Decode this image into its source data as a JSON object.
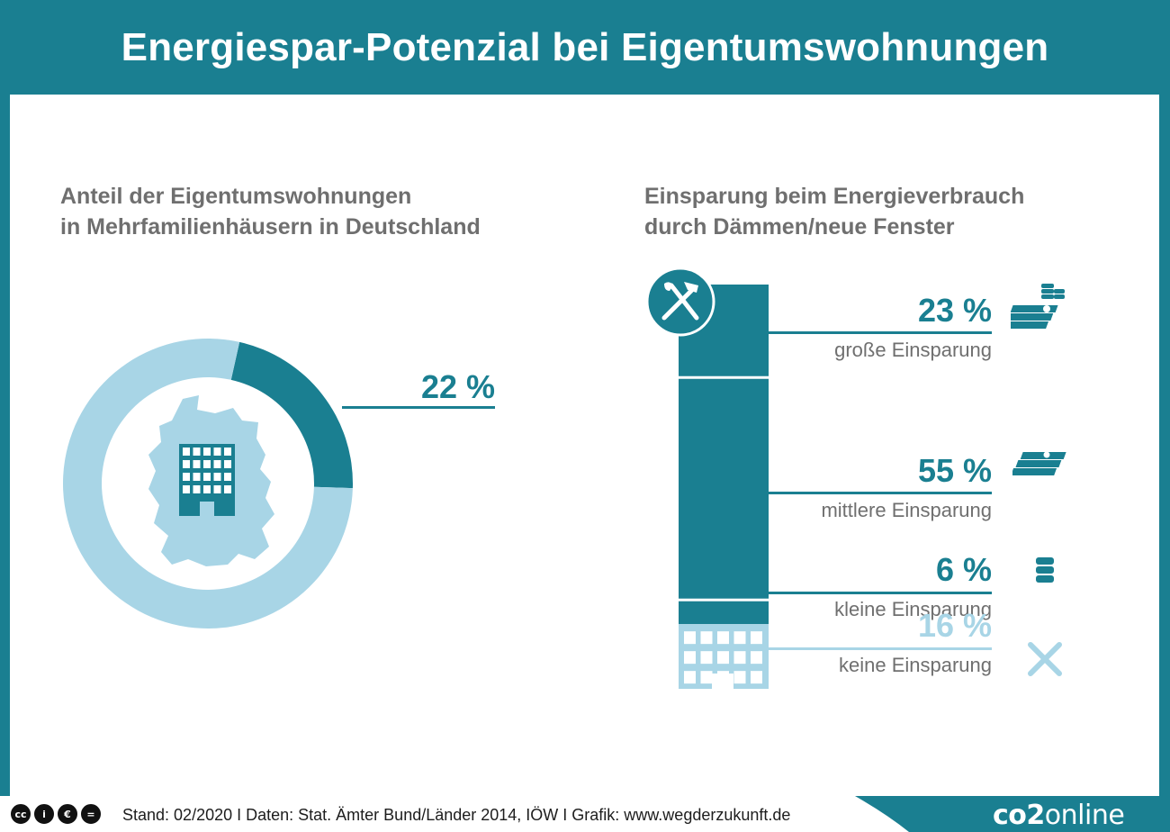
{
  "header": {
    "title": "Energiespar-Potenzial bei Eigentumswohnungen"
  },
  "colors": {
    "primary": "#1a7f91",
    "light": "#a8d5e6",
    "text_gray": "#6f6f6f"
  },
  "chart_data": [
    {
      "type": "pie",
      "title": "Anteil der Eigentumswohnungen\nin Mehrfamilienhäusern in Deutschland",
      "slices": [
        {
          "name": "",
          "value": 22,
          "label": "22 %"
        },
        {
          "name": "",
          "value": 78
        }
      ],
      "icons": [
        "germany-map-icon",
        "building-icon"
      ]
    },
    {
      "type": "bar",
      "title": "Einsparung beim Energieverbrauch\ndurch Dämmen/neue Fenster",
      "stacked": true,
      "categories": [
        "große Einsparung",
        "mittlere Einsparung",
        "kleine Einsparung",
        "keine Einsparung"
      ],
      "values": [
        23,
        55,
        6,
        16
      ],
      "labels": [
        "23 %",
        "55 %",
        "6 %",
        "16 %"
      ],
      "icons": [
        "money-coins-icon",
        "money-stack-icon",
        "coin-stack-icon",
        "cross-icon"
      ]
    }
  ],
  "footer": {
    "license_icons": [
      "cc-icon",
      "by-icon",
      "nc-icon",
      "nd-icon"
    ],
    "credits": "Stand: 02/2020   I   Daten: Stat. Ämter Bund/Länder 2014, IÖW   I   Grafik: www.wegderzukunft.de",
    "brand_bold": "co2",
    "brand_thin": "online"
  }
}
